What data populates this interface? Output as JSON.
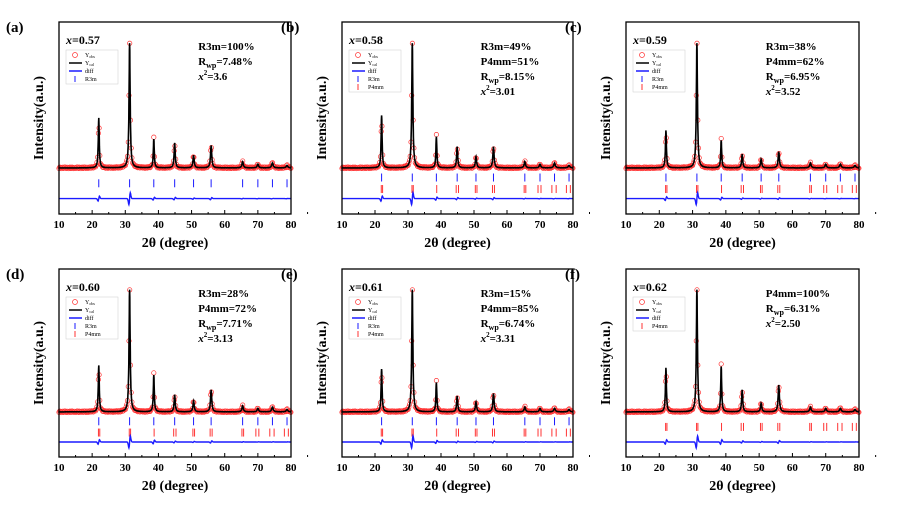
{
  "chart_data": {
    "type": "line",
    "common": {
      "xlabel": "2θ (degree)",
      "ylabel": "Intensity(a.u.)",
      "xlim": [
        10,
        80
      ],
      "xticks": [
        10,
        20,
        30,
        40,
        50,
        60,
        70,
        80
      ],
      "legend": {
        "obs": "Y",
        "obs_sub": "obs",
        "cal": "Y",
        "cal_sub": "cal",
        "diff": "diff"
      },
      "rwp_label": "R",
      "rwp_sub": "wp",
      "chi_label": "x",
      "chi_sup": "2",
      "colors": {
        "obs": "#ff3333",
        "cal": "#000000",
        "diff": "#1a1aff",
        "R3m": "#1a1aff",
        "P4mm": "#ff3333"
      },
      "bragg_positions": {
        "R3m": [
          22.0,
          31.3,
          38.6,
          44.9,
          50.6,
          55.9,
          65.4,
          70.0,
          74.4,
          78.8
        ],
        "P4mm": [
          21.9,
          22.3,
          31.2,
          31.6,
          38.7,
          44.6,
          45.3,
          50.4,
          50.9,
          55.6,
          56.2,
          65.2,
          65.7,
          69.4,
          70.3,
          73.6,
          74.9,
          78.0,
          79.2
        ]
      },
      "peak_positions": [
        22.0,
        31.3,
        38.6,
        44.9,
        50.6,
        55.9,
        65.4,
        70.0,
        74.4,
        78.8
      ]
    },
    "panels": [
      {
        "label": "(a)",
        "x_var": "x",
        "x_value": "=0.57",
        "phases": [
          "R3m=100%"
        ],
        "rwp": "=7.48%",
        "chi2": "=3.6",
        "bragg": [
          "R3m"
        ],
        "peak_intensity": [
          0.4,
          1.0,
          0.23,
          0.2,
          0.1,
          0.18,
          0.05,
          0.03,
          0.04,
          0.02
        ]
      },
      {
        "label": "(b)",
        "x_var": "x",
        "x_value": "=0.58",
        "phases": [
          "R3m=49%",
          "P4mm=51%"
        ],
        "rwp": "=8.15%",
        "chi2": "=3.01",
        "bragg": [
          "R3m",
          "P4mm"
        ],
        "peak_intensity": [
          0.42,
          1.0,
          0.25,
          0.17,
          0.09,
          0.17,
          0.05,
          0.03,
          0.04,
          0.02
        ]
      },
      {
        "label": "(c)",
        "x_var": "x",
        "x_value": "=0.59",
        "phases": [
          "R3m=38%",
          "P4mm=62%"
        ],
        "rwp": "=6.95%",
        "chi2": "=3.52",
        "bragg": [
          "R3m",
          "P4mm"
        ],
        "peak_intensity": [
          0.3,
          1.0,
          0.22,
          0.11,
          0.07,
          0.13,
          0.04,
          0.03,
          0.03,
          0.02
        ]
      },
      {
        "label": "(d)",
        "x_var": "x",
        "x_value": "=0.60",
        "phases": [
          "R3m=28%",
          "P4mm=72%"
        ],
        "rwp": "=7.71%",
        "chi2": "=3.13",
        "bragg": [
          "R3m",
          "P4mm"
        ],
        "peak_intensity": [
          0.38,
          1.0,
          0.3,
          0.14,
          0.09,
          0.18,
          0.05,
          0.03,
          0.04,
          0.02
        ]
      },
      {
        "label": "(e)",
        "x_var": "x",
        "x_value": "=0.61",
        "phases": [
          "R3m=15%",
          "P4mm=85%"
        ],
        "rwp": "=6.74%",
        "chi2": "=3.31",
        "bragg": [
          "R3m",
          "P4mm"
        ],
        "peak_intensity": [
          0.35,
          1.0,
          0.24,
          0.13,
          0.08,
          0.15,
          0.04,
          0.03,
          0.03,
          0.02
        ]
      },
      {
        "label": "(f)",
        "x_var": "x",
        "x_value": "=0.62",
        "phases": [
          "P4mm=100%"
        ],
        "rwp": "=6.31%",
        "chi2": "=2.50",
        "bragg": [
          "P4mm"
        ],
        "peak_intensity": [
          0.36,
          1.0,
          0.37,
          0.18,
          0.07,
          0.22,
          0.04,
          0.03,
          0.03,
          0.02
        ]
      }
    ]
  }
}
